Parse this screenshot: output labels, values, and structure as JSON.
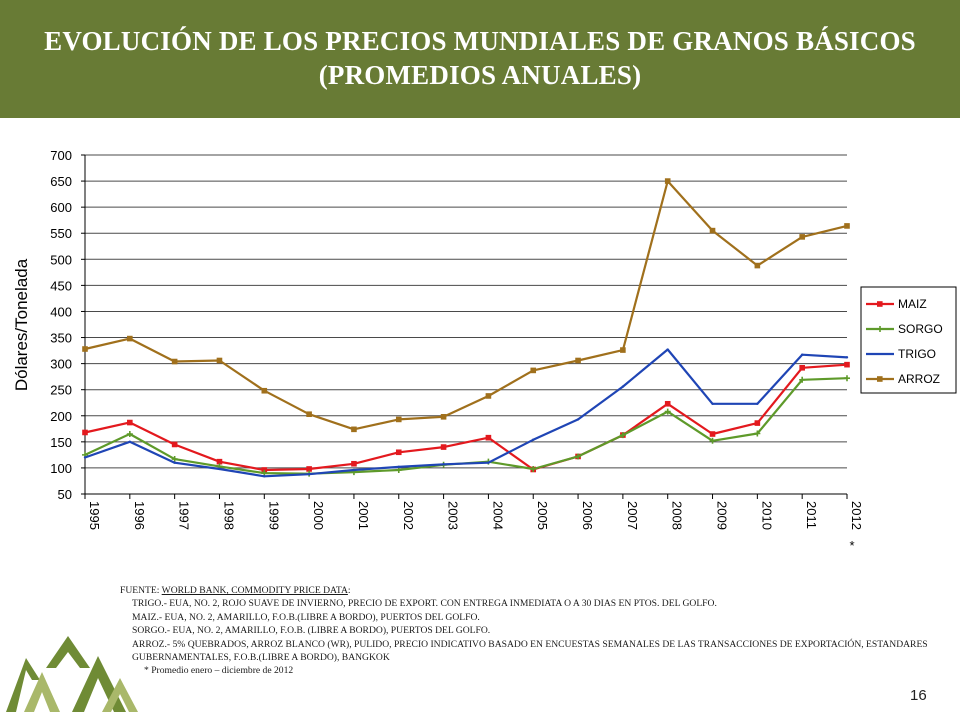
{
  "header": {
    "title_line1": "EVOLUCIÓN DE LOS PRECIOS MUNDIALES DE GRANOS BÁSICOS",
    "title_line2": "(PROMEDIOS ANUALES)",
    "banner_color": "#687b35"
  },
  "chart_data": {
    "type": "line",
    "title": "",
    "xlabel": "",
    "ylabel": "Dólares/Tonelada",
    "categories": [
      "1995",
      "1996",
      "1997",
      "1998",
      "1999",
      "2000",
      "2001",
      "2002",
      "2003",
      "2004",
      "2005",
      "2006",
      "2007",
      "2008",
      "2009",
      "2010",
      "2011",
      "2012"
    ],
    "asterisk_category": "2012",
    "asterisk": "*",
    "ylim": [
      50,
      700
    ],
    "yticks": [
      50,
      100,
      150,
      200,
      250,
      300,
      350,
      400,
      450,
      500,
      550,
      600,
      650,
      700
    ],
    "grid": "horizontal",
    "legend_position": "right",
    "series": [
      {
        "name": "MAIZ",
        "color": "#e3191e",
        "marker": "square",
        "values": [
          168,
          187,
          145,
          112,
          96,
          98,
          108,
          130,
          140,
          158,
          97,
          122,
          163,
          223,
          165,
          186,
          292,
          298
        ]
      },
      {
        "name": "SORGO",
        "color": "#5e9a2a",
        "marker": "plus",
        "values": [
          125,
          165,
          117,
          103,
          90,
          89,
          92,
          96,
          106,
          112,
          98,
          122,
          163,
          208,
          152,
          166,
          269,
          272
        ]
      },
      {
        "name": "TRIGO",
        "color": "#1f45b5",
        "marker": "none",
        "values": [
          120,
          150,
          110,
          98,
          84,
          88,
          96,
          102,
          107,
          110,
          154,
          193,
          256,
          327,
          223,
          223,
          317,
          312
        ]
      },
      {
        "name": "ARROZ",
        "color": "#a0701c",
        "marker": "square",
        "values": [
          328,
          348,
          304,
          306,
          248,
          203,
          174,
          193,
          198,
          238,
          287,
          306,
          326,
          650,
          555,
          488,
          543,
          564
        ]
      }
    ]
  },
  "footer": {
    "source_prefix": "FUENTE: ",
    "source_link": "WORLD BANK, COMMODITY PRICE DATA",
    "source_suffix": ":",
    "notes": [
      "TRIGO.- EUA, NO. 2, ROJO SUAVE DE INVIERNO, PRECIO DE EXPORT. CON ENTREGA INMEDIATA O A 30 DIAS EN PTOS. DEL GOLFO.",
      "MAIZ.- EUA, NO. 2, AMARILLO, F.O.B.(LIBRE A BORDO), PUERTOS DEL GOLFO.",
      "SORGO.- EUA, NO. 2, AMARILLO, F.O.B. (LIBRE A BORDO), PUERTOS DEL GOLFO.",
      "ARROZ.- 5% QUEBRADOS, ARROZ BLANCO (WR), PULIDO, PRECIO INDICATIVO BASADO EN ENCUESTAS SEMANALES DE LAS TRANSACCIONES DE EXPORTACIÓN, ESTANDARES GUBERNAMENTALES, F.O.B.(LIBRE A BORDO), BANGKOK"
    ],
    "asterisk_note": "* Promedio enero – diciembre de 2012",
    "page_number": "16"
  },
  "logo": {
    "name": "green-mountain-logo",
    "colors": [
      "#6f8b35",
      "#a9b86a"
    ]
  }
}
